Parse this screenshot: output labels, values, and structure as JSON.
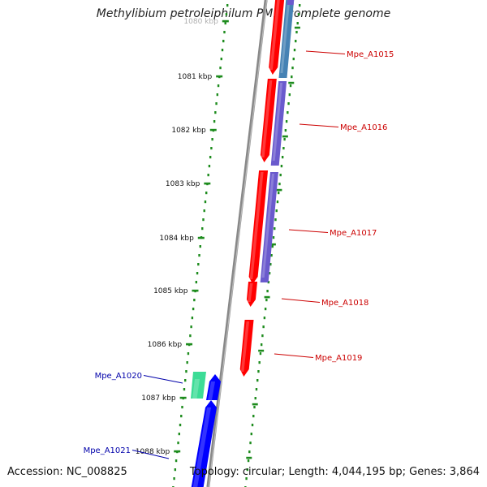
{
  "title": "Methylibium petroleiphilum PM1, complete genome",
  "accession": "Accession: NC_008825",
  "summary": "Topology: circular; Length: 4,044,195 bp; Genes: 3,864",
  "colors": {
    "forward_gene": "#ff0000",
    "reverse_gene": "#0000ff",
    "forward_label": "#cc0000",
    "reverse_label": "#0000aa",
    "orf_blue": "#4682b4",
    "orf_purple": "#6a5acd",
    "orf_green": "#3cdc96",
    "tick": "#1e8c1e",
    "backbone": "#888888"
  },
  "ticks": [
    {
      "label": "1080 kbp",
      "kbp": 1080
    },
    {
      "label": "1081 kbp",
      "kbp": 1081
    },
    {
      "label": "1082 kbp",
      "kbp": 1082
    },
    {
      "label": "1083 kbp",
      "kbp": 1083
    },
    {
      "label": "1084 kbp",
      "kbp": 1084
    },
    {
      "label": "1085 kbp",
      "kbp": 1085
    },
    {
      "label": "1086 kbp",
      "kbp": 1086
    },
    {
      "label": "1087 kbp",
      "kbp": 1087
    },
    {
      "label": "1088 kbp",
      "kbp": 1088
    }
  ],
  "genes": [
    {
      "label": "Mpe_A1015",
      "strand": "forward"
    },
    {
      "label": "Mpe_A1016",
      "strand": "forward"
    },
    {
      "label": "Mpe_A1017",
      "strand": "forward"
    },
    {
      "label": "Mpe_A1018",
      "strand": "forward"
    },
    {
      "label": "Mpe_A1019",
      "strand": "forward"
    },
    {
      "label": "Mpe_A1020",
      "strand": "reverse"
    },
    {
      "label": "Mpe_A1021",
      "strand": "reverse"
    }
  ]
}
